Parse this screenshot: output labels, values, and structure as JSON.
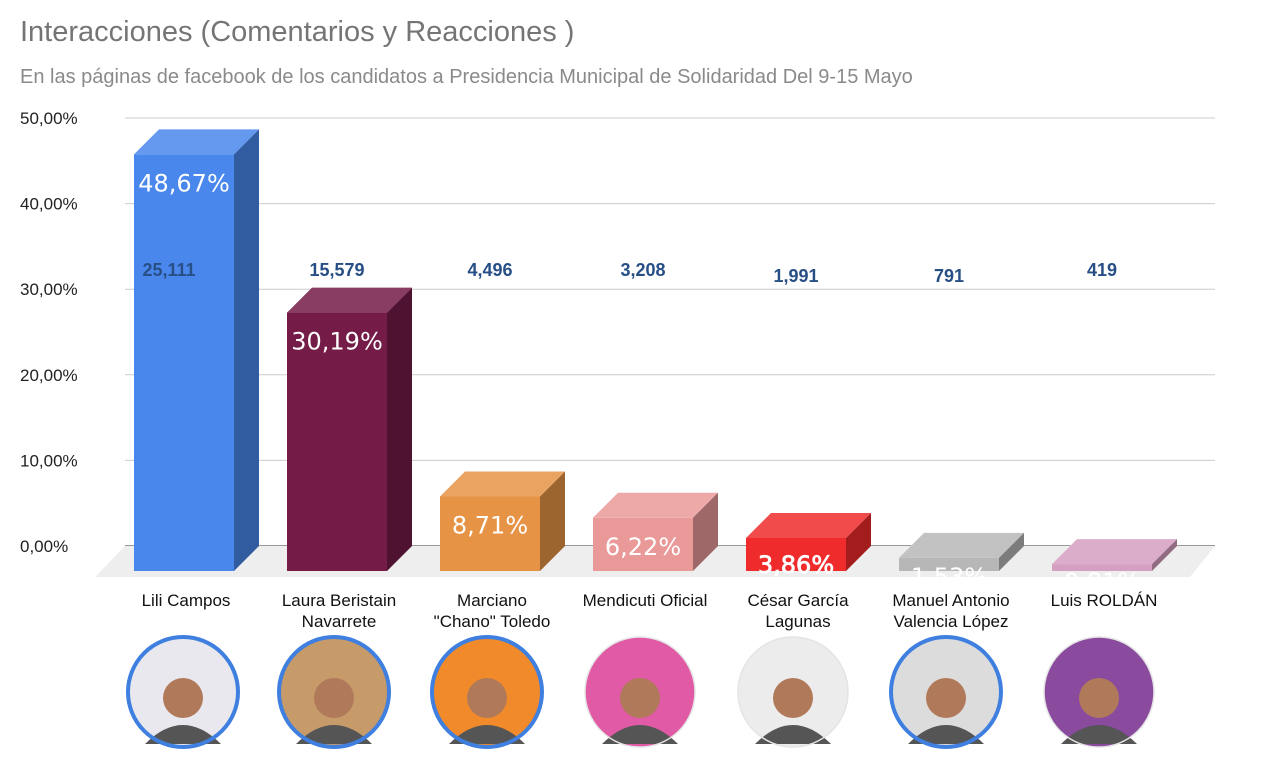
{
  "title": "Interacciones (Comentarios y Reacciones )",
  "subtitle": "En las páginas de facebook de los candidatos a Presidencia Municipal de Solidaridad Del 9-15 Mayo",
  "chart_data": {
    "type": "bar",
    "title": "Interacciones (Comentarios y Reacciones )",
    "subtitle": "En las páginas de facebook de los candidatos a Presidencia Municipal de Solidaridad Del 9-15 Mayo",
    "xlabel": "",
    "ylabel": "",
    "ylim": [
      0,
      50
    ],
    "yticks": [
      "0,00%",
      "10,00%",
      "20,00%",
      "30,00%",
      "40,00%",
      "50,00%"
    ],
    "grid": true,
    "categories": [
      [
        "Lili Campos"
      ],
      [
        "Laura Beristain",
        "Navarrete"
      ],
      [
        "Marciano",
        "\"Chano\" Toledo"
      ],
      [
        "Mendicuti Oficial"
      ],
      [
        "César García",
        "Lagunas"
      ],
      [
        "Manuel Antonio",
        "Valencia López"
      ],
      [
        "Luis ROLDÁN"
      ]
    ],
    "values": [
      48.67,
      30.19,
      8.71,
      6.22,
      3.86,
      1.53,
      0.81
    ],
    "value_labels": [
      "48,67%",
      "30,19%",
      "8,71%",
      "6,22%",
      "3,86%",
      "1,53%",
      "0,81%"
    ],
    "interaction_counts": [
      "25,111",
      "15,579",
      "4,496",
      "3,208",
      "1,991",
      "791",
      "419"
    ],
    "colors": [
      "#4a87ec",
      "#741b47",
      "#e69345",
      "#ea9999",
      "#f02b2b",
      "#b7b7b7",
      "#d59fc1"
    ],
    "avatar_colors": [
      "#e8e8ee",
      "#c79a6a",
      "#f08a2a",
      "#e05aa6",
      "#ececec",
      "#dcdcdc",
      "#8a4a9e"
    ]
  }
}
